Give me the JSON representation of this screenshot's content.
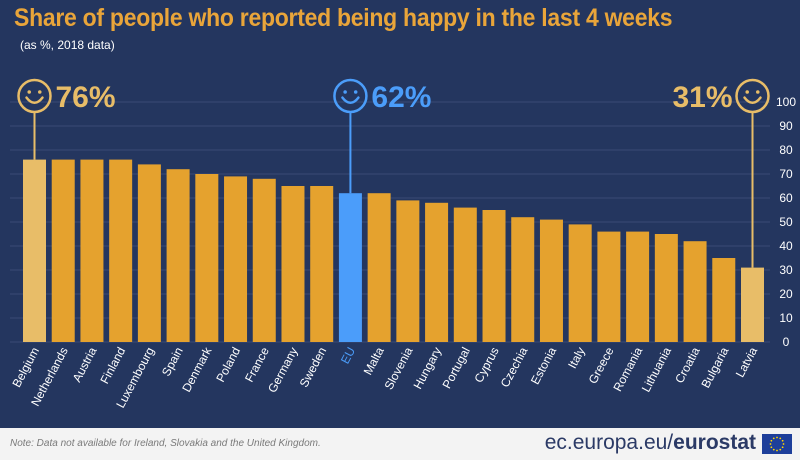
{
  "header": {
    "title": "Share of people who reported being happy in the last 4 weeks",
    "subtitle": "(as %, 2018 data)"
  },
  "chart_data": {
    "type": "bar",
    "title": "Share of people who reported being happy in the last 4 weeks",
    "subtitle": "(as %, 2018 data)",
    "categories": [
      "Belgium",
      "Netherlands",
      "Austria",
      "Finland",
      "Luxembourg",
      "Spain",
      "Denmark",
      "Poland",
      "France",
      "Germany",
      "Sweden",
      "EU",
      "Malta",
      "Slovenia",
      "Hungary",
      "Portugal",
      "Cyprus",
      "Czechia",
      "Estonia",
      "Italy",
      "Greece",
      "Romania",
      "Lithuania",
      "Croatia",
      "Bulgaria",
      "Latvia"
    ],
    "values": [
      76,
      76,
      76,
      76,
      74,
      72,
      70,
      69,
      68,
      65,
      65,
      62,
      62,
      59,
      58,
      56,
      55,
      52,
      51,
      49,
      46,
      46,
      45,
      42,
      35,
      31
    ],
    "ylim": [
      0,
      100
    ],
    "yticks": [
      0,
      10,
      20,
      30,
      40,
      50,
      60,
      70,
      80,
      90,
      100
    ],
    "y_axis_position": "right",
    "grid": true,
    "highlights": [
      {
        "category": "Belgium",
        "label": "76%",
        "icon": "smiley-icon",
        "color": "#e8bd68"
      },
      {
        "category": "EU",
        "label": "62%",
        "icon": "smiley-icon",
        "color": "#4b9dfa"
      },
      {
        "category": "Latvia",
        "label": "31%",
        "icon": "smiley-icon",
        "color": "#e8bd68"
      }
    ],
    "colors": {
      "default_bar": "#e5a22e",
      "extreme_bar": "#e8bd68",
      "eu_bar": "#4b9dfa",
      "background": "#24365f",
      "grid": "#3a4b74"
    }
  },
  "footer": {
    "note": "Note: Data not available for Ireland, Slovakia and the United Kingdom.",
    "brand_domain": "ec.europa.eu/",
    "brand_name": "eurostat",
    "flag_icon": "eu-flag-icon"
  }
}
